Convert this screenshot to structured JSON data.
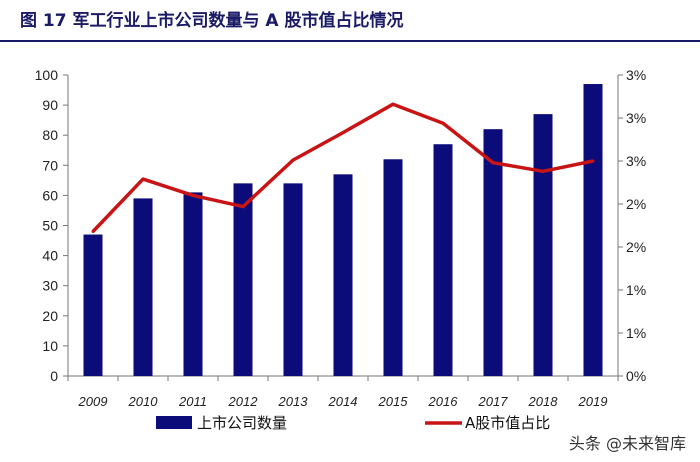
{
  "title": "图 17 军工行业上市公司数量与 A 股市值占比情况",
  "watermark": "头条 @未来智库",
  "chart_data": {
    "type": "bar",
    "categories": [
      "2009",
      "2010",
      "2011",
      "2012",
      "2013",
      "2014",
      "2015",
      "2016",
      "2017",
      "2018",
      "2019"
    ],
    "series": [
      {
        "name": "上市公司数量",
        "type": "bar",
        "axis": "left",
        "color": "#0b0b7a",
        "values": [
          47,
          59,
          61,
          64,
          64,
          67,
          72,
          77,
          82,
          87,
          97
        ]
      },
      {
        "name": "A股市值占比",
        "type": "line",
        "axis": "right",
        "color": "#c81414",
        "values": [
          1.68,
          2.29,
          2.1,
          1.97,
          2.51,
          2.83,
          3.16,
          2.94,
          2.48,
          2.38,
          2.5
        ]
      }
    ],
    "left_axis": {
      "ylim": [
        0,
        100
      ],
      "ticks": [
        "0",
        "10",
        "20",
        "30",
        "40",
        "50",
        "60",
        "70",
        "80",
        "90",
        "100"
      ]
    },
    "right_axis": {
      "ylim": [
        0,
        3.5
      ],
      "ticks": [
        "0%",
        "1%",
        "1%",
        "2%",
        "2%",
        "3%",
        "3%",
        "3%"
      ]
    },
    "legend_position": "bottom",
    "grid": false
  }
}
